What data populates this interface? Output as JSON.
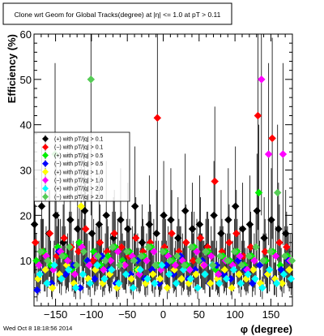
{
  "canvas_title": "Clone wrt Geom for Global Tracks(degree) at |η| <= 1.0 at pT > 0.11",
  "footer_timestamp": "Wed Oct  8 18:18:56 2014",
  "colors": {
    "black": "#000000",
    "red": "#ff0000",
    "green": "#00ee00",
    "blue": "#0000ff",
    "yellow": "#ffff00",
    "magenta": "#ff00ff",
    "cyan": "#00ffff",
    "lime": "#55cc55"
  },
  "chart_data": {
    "type": "scatter",
    "title": "Clone wrt Geom for Global Tracks(degree) at |η| <= 1.0 at pT > 0.11",
    "xlabel": "φ (degree)",
    "ylabel": "Efficiency (%)",
    "xlim": [
      -180,
      180
    ],
    "ylim": [
      0,
      60
    ],
    "x_ticks": [
      -150,
      -100,
      -50,
      0,
      50,
      100,
      150
    ],
    "y_ticks": [
      10,
      20,
      30,
      40,
      50,
      60
    ],
    "x_tick_labels": [
      "−150",
      "−100",
      "−50",
      "0",
      "50",
      "100",
      "150"
    ],
    "y_tick_labels": [
      "10",
      "20",
      "30",
      "40",
      "50",
      "60"
    ],
    "legend_position": "left",
    "legend": [
      {
        "label": "(+) with pT/|q| > 0.1",
        "color": "#000000"
      },
      {
        "label": "(−) with pT/|q| > 0.1",
        "color": "#ff0000"
      },
      {
        "label": "(+) with pT/|q| > 0.5",
        "color": "#00ee00"
      },
      {
        "label": "(−) with pT/|q| > 0.5",
        "color": "#0000ff"
      },
      {
        "label": "(+) with pT/|q| > 1.0",
        "color": "#ffff00"
      },
      {
        "label": "(−) with pT/|q| > 1.0",
        "color": "#ff00ff"
      },
      {
        "label": "(+) with pT/|q| > 2.0",
        "color": "#00ffff"
      },
      {
        "label": "(−) with pT/|q| > 2.0",
        "color": "#55cc55"
      }
    ],
    "series": [
      {
        "color": "#000000",
        "x": [
          -175,
          -165,
          -155,
          -145,
          -135,
          -125,
          -115,
          -105,
          -95,
          -85,
          -75,
          -65,
          -55,
          -45,
          -35,
          -25,
          -15,
          -5,
          5,
          15,
          25,
          35,
          45,
          55,
          65,
          75,
          85,
          95,
          105,
          115,
          125,
          135,
          145,
          155,
          165,
          175
        ],
        "y": [
          18,
          22,
          16,
          20,
          14,
          19,
          17,
          21,
          16,
          18,
          20,
          15,
          19,
          17,
          22,
          14,
          18,
          16,
          20,
          19,
          15,
          21,
          17,
          18,
          13,
          20,
          16,
          19,
          22,
          17,
          18,
          21,
          15,
          19,
          17,
          16
        ]
      },
      {
        "color": "#ff0000",
        "x": [
          -175,
          -165,
          -155,
          -145,
          -135,
          -125,
          -115,
          -105,
          -95,
          -85,
          -75,
          -65,
          -55,
          -45,
          -35,
          -25,
          -15,
          -5,
          5,
          15,
          25,
          35,
          45,
          55,
          65,
          75,
          85,
          95,
          105,
          115,
          125,
          135,
          145,
          155,
          165,
          175
        ],
        "y": [
          14,
          12,
          16,
          11,
          15,
          13,
          12,
          17,
          10,
          14,
          12,
          16,
          13,
          11,
          15,
          12,
          14,
          41.5,
          13,
          16,
          12,
          14,
          10,
          15,
          13,
          27.5,
          12,
          14,
          16,
          11,
          13,
          42,
          12,
          37,
          14,
          13
        ]
      },
      {
        "color": "#00ee00",
        "x": [
          -175,
          -165,
          -155,
          -145,
          -135,
          -125,
          -115,
          -105,
          -95,
          -85,
          -75,
          -65,
          -55,
          -45,
          -35,
          -25,
          -15,
          -5,
          5,
          15,
          25,
          35,
          45,
          55,
          65,
          75,
          85,
          95,
          105,
          115,
          125,
          135,
          145,
          155,
          165,
          175
        ],
        "y": [
          10,
          12,
          9,
          13,
          11,
          8,
          14,
          10,
          12,
          9,
          11,
          13,
          10,
          12,
          8,
          11,
          13,
          9,
          12,
          10,
          11,
          9,
          13,
          10,
          12,
          8,
          11,
          10,
          12,
          9,
          11,
          25,
          10,
          12,
          9,
          11
        ]
      },
      {
        "color": "#0000ff",
        "x": [
          -175,
          -165,
          -155,
          -145,
          -135,
          -125,
          -115,
          -105,
          -95,
          -85,
          -75,
          -65,
          -55,
          -45,
          -35,
          -25,
          -15,
          -5,
          5,
          15,
          25,
          35,
          45,
          55,
          65,
          75,
          85,
          95,
          105,
          115,
          125,
          135,
          145,
          155,
          165,
          175
        ],
        "y": [
          3.5,
          8,
          5,
          12,
          7,
          9,
          4,
          10,
          6,
          11,
          8,
          5,
          9,
          7,
          10,
          6,
          8,
          5,
          9,
          7,
          11,
          6,
          8,
          10,
          5,
          9,
          7,
          6,
          10,
          8,
          5,
          9,
          7,
          6,
          8,
          10
        ]
      },
      {
        "color": "#ffff00",
        "x": [
          -175,
          -165,
          -155,
          -145,
          -135,
          -125,
          -115,
          -105,
          -95,
          -85,
          -75,
          -65,
          -55,
          -45,
          -35,
          -25,
          -15,
          -5,
          5,
          15,
          25,
          35,
          45,
          55,
          65,
          75,
          85,
          95,
          105,
          115,
          125,
          135,
          145,
          155,
          165,
          175
        ],
        "y": [
          6,
          8,
          4,
          7,
          9,
          5,
          22,
          6,
          8,
          5,
          7,
          4,
          9,
          6,
          8,
          5,
          7,
          6,
          4,
          8,
          6,
          5,
          7,
          9,
          5,
          6,
          8,
          4,
          7,
          6,
          8,
          5,
          7,
          6,
          5,
          8
        ]
      },
      {
        "color": "#ff00ff",
        "x": [
          -175,
          -165,
          -155,
          -145,
          -135,
          -125,
          -115,
          -105,
          -95,
          -85,
          -75,
          -65,
          -55,
          -45,
          -35,
          -25,
          -15,
          -5,
          5,
          15,
          25,
          35,
          45,
          55,
          65,
          75,
          85,
          95,
          105,
          115,
          125,
          135,
          145,
          155,
          165,
          175
        ],
        "y": [
          9,
          11,
          8,
          12,
          10,
          7,
          13,
          9,
          11,
          8,
          10,
          12,
          9,
          11,
          7,
          10,
          12,
          8,
          11,
          9,
          10,
          8,
          12,
          9,
          11,
          7,
          10,
          9,
          11,
          8,
          10,
          50,
          33.5,
          11,
          33.5,
          10
        ]
      },
      {
        "color": "#00ffff",
        "x": [
          -175,
          -165,
          -155,
          -145,
          -135,
          -125,
          -115,
          -105,
          -95,
          -85,
          -75,
          -65,
          -55,
          -45,
          -35,
          -25,
          -15,
          -5,
          5,
          15,
          25,
          35,
          45,
          55,
          65,
          75,
          85,
          95,
          105,
          115,
          125,
          135,
          145,
          155,
          165,
          175
        ],
        "y": [
          7,
          5,
          9,
          6,
          8,
          4,
          7,
          5,
          9,
          6,
          8,
          5,
          7,
          4,
          8,
          6,
          5,
          9,
          7,
          5,
          8,
          6,
          4,
          7,
          9,
          5,
          6,
          8,
          5,
          7,
          6,
          4,
          8,
          5,
          7,
          6
        ]
      },
      {
        "color": "#55cc55",
        "x": [
          -175,
          -165,
          -155,
          -145,
          -135,
          -125,
          -115,
          -105,
          -95,
          -85,
          -75,
          -65,
          -55,
          -45,
          -35,
          -25,
          -15,
          -5,
          5,
          15,
          25,
          35,
          45,
          55,
          65,
          75,
          85,
          95,
          105,
          115,
          125,
          135,
          145,
          155,
          165,
          175
        ],
        "y": [
          12,
          10,
          33.5,
          11,
          13,
          9,
          12,
          50,
          11,
          10,
          13,
          9,
          12,
          10,
          11,
          13,
          9,
          12,
          10,
          11,
          9,
          13,
          10,
          12,
          9,
          11,
          10,
          12,
          9,
          11,
          13,
          10,
          12,
          25,
          11,
          10
        ]
      }
    ]
  }
}
